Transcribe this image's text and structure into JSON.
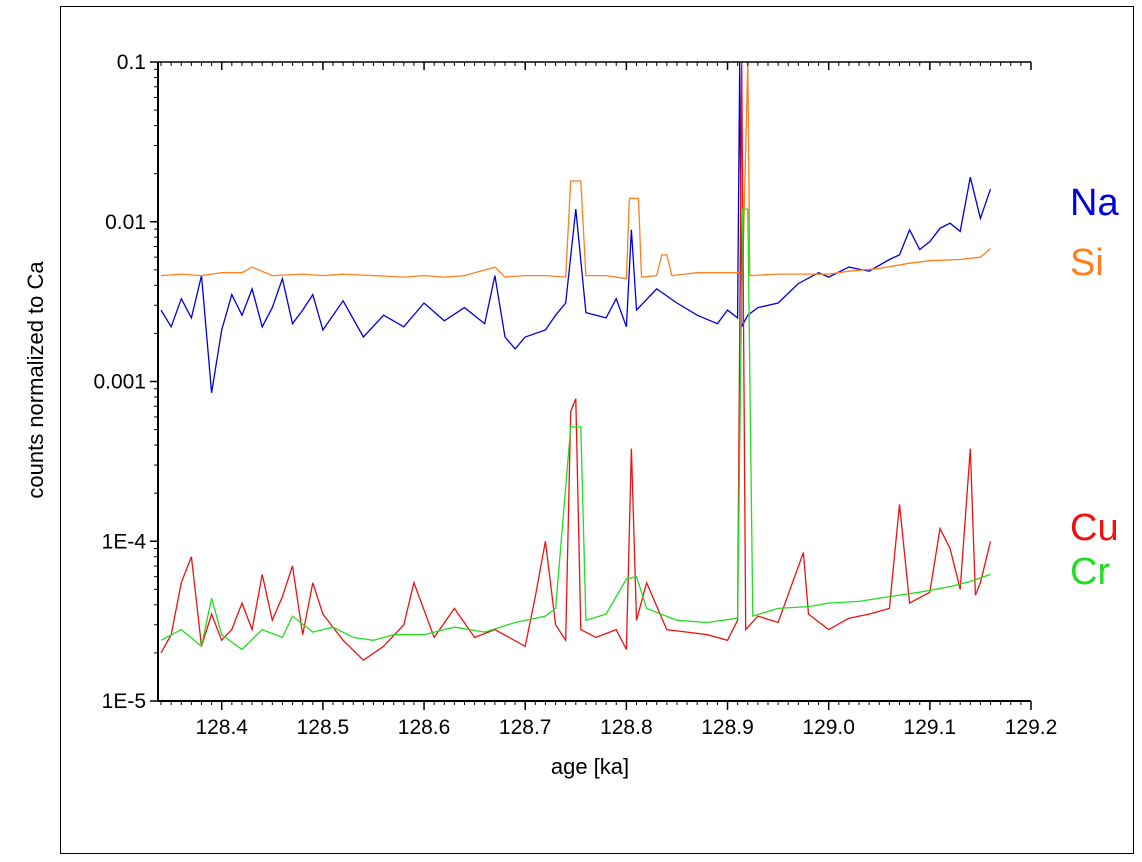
{
  "chart_data": {
    "type": "line",
    "xlabel": "age [ka]",
    "ylabel": "counts normalized to Ca",
    "xlim": [
      128.337,
      129.2
    ],
    "ylim": [
      1e-05,
      0.1
    ],
    "y_scale": "log",
    "x_ticks": [
      "128.4",
      "128.5",
      "128.6",
      "128.7",
      "128.8",
      "128.9",
      "129.0",
      "129.1",
      "129.2"
    ],
    "x_tick_values": [
      128.4,
      128.5,
      128.6,
      128.7,
      128.8,
      128.9,
      129.0,
      129.1,
      129.2
    ],
    "y_ticks": [
      "1E-5",
      "1E-4",
      "0.001",
      "0.01",
      "0.1"
    ],
    "y_tick_values": [
      1e-05,
      0.0001,
      0.001,
      0.01,
      0.1
    ],
    "grid": false,
    "legend_placement": "right",
    "series": [
      {
        "name": "Na",
        "color": "#0000dd",
        "points": [
          [
            128.34,
            0.0028
          ],
          [
            128.35,
            0.0022
          ],
          [
            128.36,
            0.0033
          ],
          [
            128.37,
            0.0025
          ],
          [
            128.38,
            0.0046
          ],
          [
            128.39,
            0.00085
          ],
          [
            128.4,
            0.0021
          ],
          [
            128.41,
            0.0035
          ],
          [
            128.42,
            0.0026
          ],
          [
            128.43,
            0.0038
          ],
          [
            128.44,
            0.0022
          ],
          [
            128.45,
            0.0029
          ],
          [
            128.46,
            0.0044
          ],
          [
            128.47,
            0.0023
          ],
          [
            128.48,
            0.0028
          ],
          [
            128.49,
            0.0035
          ],
          [
            128.5,
            0.0021
          ],
          [
            128.52,
            0.0032
          ],
          [
            128.54,
            0.0019
          ],
          [
            128.56,
            0.0026
          ],
          [
            128.58,
            0.0022
          ],
          [
            128.6,
            0.0031
          ],
          [
            128.62,
            0.0024
          ],
          [
            128.64,
            0.0029
          ],
          [
            128.66,
            0.0023
          ],
          [
            128.67,
            0.0046
          ],
          [
            128.68,
            0.0019
          ],
          [
            128.69,
            0.0016
          ],
          [
            128.7,
            0.0019
          ],
          [
            128.72,
            0.0021
          ],
          [
            128.73,
            0.0026
          ],
          [
            128.74,
            0.0031
          ],
          [
            128.75,
            0.012
          ],
          [
            128.76,
            0.0027
          ],
          [
            128.78,
            0.0025
          ],
          [
            128.79,
            0.0033
          ],
          [
            128.8,
            0.0022
          ],
          [
            128.805,
            0.0089
          ],
          [
            128.81,
            0.0028
          ],
          [
            128.83,
            0.0038
          ],
          [
            128.85,
            0.0031
          ],
          [
            128.87,
            0.0026
          ],
          [
            128.89,
            0.0023
          ],
          [
            128.9,
            0.0028
          ],
          [
            128.91,
            0.0025
          ],
          [
            128.912,
            0.1
          ],
          [
            128.914,
            0.0022
          ],
          [
            128.92,
            0.0026
          ],
          [
            128.93,
            0.0029
          ],
          [
            128.95,
            0.0031
          ],
          [
            128.97,
            0.0041
          ],
          [
            128.99,
            0.0048
          ],
          [
            129.0,
            0.0045
          ],
          [
            129.02,
            0.0052
          ],
          [
            129.04,
            0.0049
          ],
          [
            129.06,
            0.0058
          ],
          [
            129.07,
            0.0062
          ],
          [
            129.08,
            0.0089
          ],
          [
            129.09,
            0.0067
          ],
          [
            129.1,
            0.0075
          ],
          [
            129.11,
            0.0091
          ],
          [
            129.12,
            0.0098
          ],
          [
            129.13,
            0.0087
          ],
          [
            129.14,
            0.019
          ],
          [
            129.15,
            0.0105
          ],
          [
            129.16,
            0.016
          ]
        ]
      },
      {
        "name": "Si",
        "color": "#ff7f1e",
        "points": [
          [
            128.34,
            0.0046
          ],
          [
            128.36,
            0.0047
          ],
          [
            128.38,
            0.0046
          ],
          [
            128.4,
            0.0048
          ],
          [
            128.42,
            0.0048
          ],
          [
            128.43,
            0.0052
          ],
          [
            128.45,
            0.0046
          ],
          [
            128.48,
            0.0047
          ],
          [
            128.5,
            0.0046
          ],
          [
            128.52,
            0.0047
          ],
          [
            128.55,
            0.0046
          ],
          [
            128.58,
            0.0045
          ],
          [
            128.6,
            0.0046
          ],
          [
            128.62,
            0.0045
          ],
          [
            128.64,
            0.0046
          ],
          [
            128.67,
            0.0052
          ],
          [
            128.68,
            0.0045
          ],
          [
            128.7,
            0.0046
          ],
          [
            128.72,
            0.0046
          ],
          [
            128.74,
            0.0045
          ],
          [
            128.745,
            0.018
          ],
          [
            128.755,
            0.018
          ],
          [
            128.76,
            0.0046
          ],
          [
            128.78,
            0.0046
          ],
          [
            128.8,
            0.0044
          ],
          [
            128.803,
            0.014
          ],
          [
            128.812,
            0.014
          ],
          [
            128.815,
            0.0045
          ],
          [
            128.83,
            0.0046
          ],
          [
            128.835,
            0.0062
          ],
          [
            128.84,
            0.0062
          ],
          [
            128.845,
            0.0046
          ],
          [
            128.87,
            0.0048
          ],
          [
            128.9,
            0.0048
          ],
          [
            128.915,
            0.0048
          ],
          [
            128.92,
            0.1
          ],
          [
            128.922,
            0.0046
          ],
          [
            128.95,
            0.0047
          ],
          [
            128.98,
            0.0047
          ],
          [
            129.0,
            0.0047
          ],
          [
            129.02,
            0.0049
          ],
          [
            129.05,
            0.0051
          ],
          [
            129.08,
            0.0055
          ],
          [
            129.1,
            0.0057
          ],
          [
            129.13,
            0.0058
          ],
          [
            129.15,
            0.006
          ],
          [
            129.16,
            0.0068
          ]
        ]
      },
      {
        "name": "Cu",
        "color": "#ee1111",
        "points": [
          [
            128.34,
            2e-05
          ],
          [
            128.35,
            2.6e-05
          ],
          [
            128.36,
            5.5e-05
          ],
          [
            128.37,
            8e-05
          ],
          [
            128.38,
            2.2e-05
          ],
          [
            128.39,
            3.5e-05
          ],
          [
            128.4,
            2.4e-05
          ],
          [
            128.41,
            2.8e-05
          ],
          [
            128.42,
            4.1e-05
          ],
          [
            128.43,
            2.8e-05
          ],
          [
            128.44,
            6.2e-05
          ],
          [
            128.45,
            3.2e-05
          ],
          [
            128.46,
            4.5e-05
          ],
          [
            128.47,
            7e-05
          ],
          [
            128.48,
            2.6e-05
          ],
          [
            128.49,
            5.5e-05
          ],
          [
            128.5,
            3.5e-05
          ],
          [
            128.52,
            2.4e-05
          ],
          [
            128.54,
            1.8e-05
          ],
          [
            128.56,
            2.2e-05
          ],
          [
            128.58,
            3e-05
          ],
          [
            128.59,
            5.5e-05
          ],
          [
            128.61,
            2.5e-05
          ],
          [
            128.63,
            3.8e-05
          ],
          [
            128.65,
            2.5e-05
          ],
          [
            128.67,
            2.8e-05
          ],
          [
            128.7,
            2.2e-05
          ],
          [
            128.71,
            4.5e-05
          ],
          [
            128.72,
            0.0001
          ],
          [
            128.73,
            3e-05
          ],
          [
            128.74,
            2.4e-05
          ],
          [
            128.745,
            0.00065
          ],
          [
            128.75,
            0.00078
          ],
          [
            128.755,
            2.8e-05
          ],
          [
            128.77,
            2.5e-05
          ],
          [
            128.79,
            2.8e-05
          ],
          [
            128.8,
            2.1e-05
          ],
          [
            128.805,
            0.00038
          ],
          [
            128.81,
            3.2e-05
          ],
          [
            128.82,
            5.5e-05
          ],
          [
            128.84,
            2.8e-05
          ],
          [
            128.86,
            2.7e-05
          ],
          [
            128.88,
            2.6e-05
          ],
          [
            128.9,
            2.4e-05
          ],
          [
            128.91,
            3.2e-05
          ],
          [
            128.914,
            0.1
          ],
          [
            128.918,
            2.8e-05
          ],
          [
            128.93,
            3.4e-05
          ],
          [
            128.95,
            3.1e-05
          ],
          [
            128.975,
            8.5e-05
          ],
          [
            128.98,
            3.5e-05
          ],
          [
            129.0,
            2.8e-05
          ],
          [
            129.02,
            3.3e-05
          ],
          [
            129.04,
            3.5e-05
          ],
          [
            129.06,
            3.8e-05
          ],
          [
            129.07,
            0.00017
          ],
          [
            129.08,
            4.1e-05
          ],
          [
            129.1,
            4.8e-05
          ],
          [
            129.11,
            0.00012
          ],
          [
            129.12,
            9e-05
          ],
          [
            129.13,
            5e-05
          ],
          [
            129.14,
            0.00038
          ],
          [
            129.145,
            4.6e-05
          ],
          [
            129.15,
            5.5e-05
          ],
          [
            129.16,
            0.0001
          ]
        ]
      },
      {
        "name": "Cr",
        "color": "#22dd22",
        "points": [
          [
            128.34,
            2.4e-05
          ],
          [
            128.36,
            2.8e-05
          ],
          [
            128.38,
            2.2e-05
          ],
          [
            128.39,
            4.4e-05
          ],
          [
            128.4,
            2.6e-05
          ],
          [
            128.42,
            2.1e-05
          ],
          [
            128.44,
            2.8e-05
          ],
          [
            128.46,
            2.5e-05
          ],
          [
            128.47,
            3.4e-05
          ],
          [
            128.49,
            2.7e-05
          ],
          [
            128.51,
            2.9e-05
          ],
          [
            128.53,
            2.5e-05
          ],
          [
            128.55,
            2.4e-05
          ],
          [
            128.57,
            2.6e-05
          ],
          [
            128.6,
            2.6e-05
          ],
          [
            128.63,
            2.9e-05
          ],
          [
            128.66,
            2.7e-05
          ],
          [
            128.69,
            3.1e-05
          ],
          [
            128.72,
            3.4e-05
          ],
          [
            128.73,
            3.8e-05
          ],
          [
            128.745,
            0.00052
          ],
          [
            128.755,
            0.00052
          ],
          [
            128.76,
            3.2e-05
          ],
          [
            128.78,
            3.5e-05
          ],
          [
            128.8,
            5.8e-05
          ],
          [
            128.81,
            6e-05
          ],
          [
            128.82,
            3.8e-05
          ],
          [
            128.85,
            3.2e-05
          ],
          [
            128.88,
            3.1e-05
          ],
          [
            128.91,
            3.3e-05
          ],
          [
            128.915,
            0.012
          ],
          [
            128.92,
            0.012
          ],
          [
            128.925,
            3.4e-05
          ],
          [
            128.95,
            3.8e-05
          ],
          [
            128.98,
            3.9e-05
          ],
          [
            129.0,
            4.1e-05
          ],
          [
            129.03,
            4.2e-05
          ],
          [
            129.06,
            4.5e-05
          ],
          [
            129.09,
            4.8e-05
          ],
          [
            129.12,
            5.2e-05
          ],
          [
            129.14,
            5.6e-05
          ],
          [
            129.16,
            6.2e-05
          ]
        ]
      }
    ]
  }
}
